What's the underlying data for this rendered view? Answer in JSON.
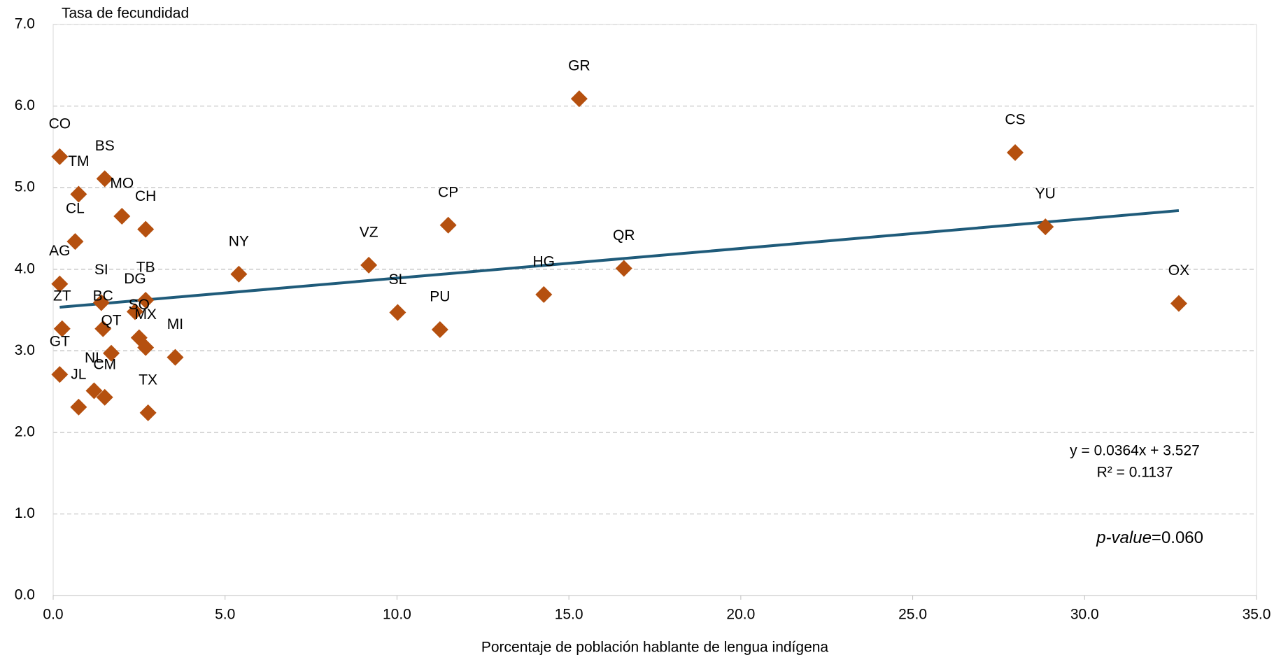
{
  "chart_data": {
    "type": "scatter",
    "y_label": "Tasa de fecundidad",
    "x_label": "Porcentaje de población hablante de lengua indígena",
    "xlim": [
      0,
      35
    ],
    "xticks": [
      {
        "value": 0,
        "label": "0.0"
      },
      {
        "value": 5,
        "label": "5.0"
      },
      {
        "value": 10,
        "label": "10.0"
      },
      {
        "value": 15,
        "label": "15.0"
      },
      {
        "value": 20,
        "label": "20.0"
      },
      {
        "value": 25,
        "label": "25.0"
      },
      {
        "value": 30,
        "label": "30.0"
      },
      {
        "value": 35,
        "label": "35.0"
      }
    ],
    "ylim": [
      0,
      7
    ],
    "yticks": [
      {
        "value": 0,
        "label": "0.0"
      },
      {
        "value": 1,
        "label": "1.0"
      },
      {
        "value": 2,
        "label": "2.0"
      },
      {
        "value": 3,
        "label": "3.0"
      },
      {
        "value": 4,
        "label": "4.0"
      },
      {
        "value": 5,
        "label": "5.0"
      },
      {
        "value": 6,
        "label": "6.0"
      },
      {
        "value": 7,
        "label": "7.0"
      }
    ],
    "grid": true,
    "color": "#b5500f",
    "labels": [
      "CO",
      "TM",
      "BS",
      "MO",
      "CH",
      "CL",
      "AG",
      "SI",
      "ZT",
      "BC",
      "GT",
      "JL",
      "NL",
      "CM",
      "TB",
      "DG",
      "SO",
      "MX",
      "QT",
      "MI",
      "TX",
      "NY",
      "VZ",
      "SL",
      "CP",
      "PU",
      "HG",
      "GR",
      "QR",
      "CS",
      "YU",
      "OX"
    ],
    "x": [
      0.19,
      0.74,
      1.5,
      2.0,
      2.69,
      0.64,
      0.19,
      1.4,
      0.26,
      1.45,
      0.19,
      0.74,
      1.19,
      1.5,
      2.69,
      2.38,
      2.5,
      2.69,
      1.69,
      3.55,
      2.76,
      5.4,
      9.18,
      10.02,
      11.49,
      11.25,
      14.27,
      15.3,
      16.6,
      27.98,
      28.86,
      32.74
    ],
    "values": [
      5.38,
      4.92,
      5.11,
      4.65,
      4.49,
      4.34,
      3.82,
      3.59,
      3.27,
      3.27,
      2.71,
      2.31,
      2.51,
      2.43,
      3.62,
      3.48,
      3.16,
      3.04,
      2.97,
      2.92,
      2.24,
      3.94,
      4.05,
      3.47,
      4.54,
      3.26,
      3.69,
      6.09,
      4.01,
      5.43,
      4.52,
      3.58
    ],
    "trendline": {
      "slope": 0.0364,
      "intercept": 3.527,
      "color": "#1f5b7a",
      "equation": "y = 0.0364x + 3.527",
      "r2_label": "R² = 0.1137"
    },
    "p_label": "p-value",
    "p_text": "=0.060"
  }
}
